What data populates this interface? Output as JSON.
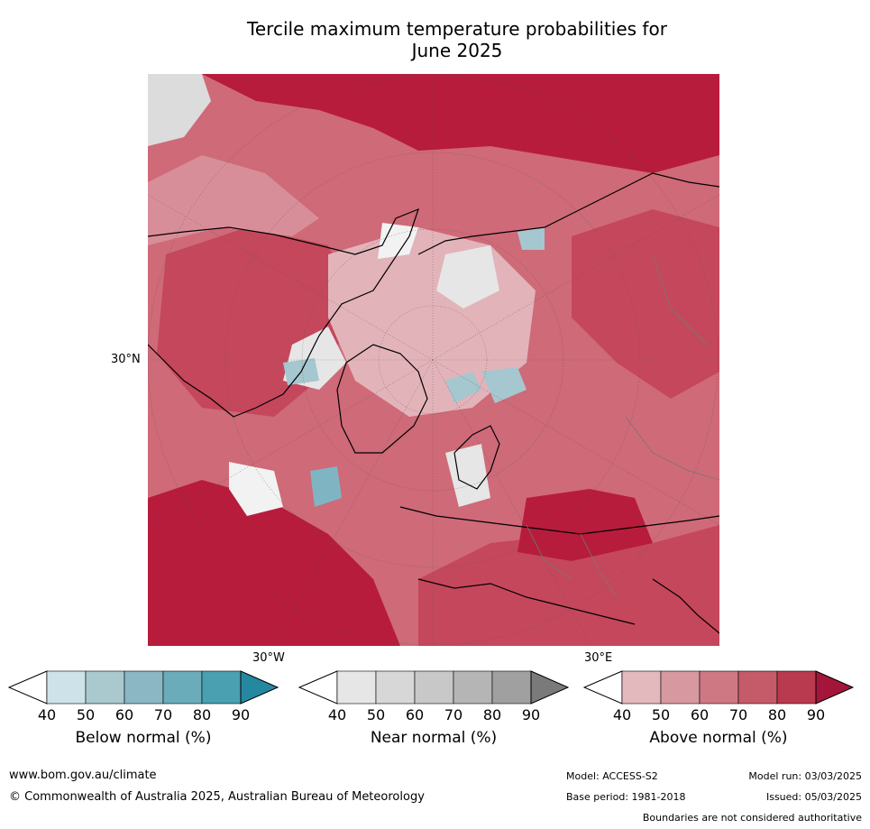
{
  "title_line1": "Tercile maximum temperature probabilities for",
  "title_line2": "June 2025",
  "map": {
    "lat_label": "30°N",
    "lon_label_left": "30°W",
    "lon_label_right": "30°E",
    "colors": {
      "above_90": "#b71c3c",
      "above_80": "#c5475c",
      "above_70": "#cf6a78",
      "above_60": "#d88e98",
      "above_50": "#e3b3ba",
      "near": "#dcdcdc",
      "below_50": "#a5c7cf",
      "below_70": "#7fb5c3"
    }
  },
  "colorbars": [
    {
      "label": "Below normal (%)",
      "ticks": [
        "40",
        "50",
        "60",
        "70",
        "80",
        "90"
      ],
      "colors": [
        "#cde3e9",
        "#a9c9cf",
        "#8ab7c3",
        "#6aacba",
        "#4a9fb1",
        "#2f8fa6"
      ],
      "extend_color": "#2588a0"
    },
    {
      "label": "Near normal (%)",
      "ticks": [
        "40",
        "50",
        "60",
        "70",
        "80",
        "90"
      ],
      "colors": [
        "#e6e6e6",
        "#d7d7d7",
        "#c8c8c8",
        "#b5b5b5",
        "#a0a0a0",
        "#8a8a8a"
      ],
      "extend_color": "#7a7a7a"
    },
    {
      "label": "Above normal (%)",
      "ticks": [
        "40",
        "50",
        "60",
        "70",
        "80",
        "90"
      ],
      "colors": [
        "#e3b9be",
        "#d898a0",
        "#ce7883",
        "#c55a68",
        "#b93a4e",
        "#a8183a"
      ],
      "extend_color": "#a3153a"
    }
  ],
  "footer": {
    "url": "www.bom.gov.au/climate",
    "copyright": "© Commonwealth of Australia 2025, Australian Bureau of Meteorology",
    "model": "Model: ACCESS-S2",
    "model_run": "Model run: 03/03/2025",
    "base_period": "Base period: 1981-2018",
    "issued": "Issued: 05/03/2025",
    "disclaimer": "Boundaries are not considered authoritative"
  }
}
